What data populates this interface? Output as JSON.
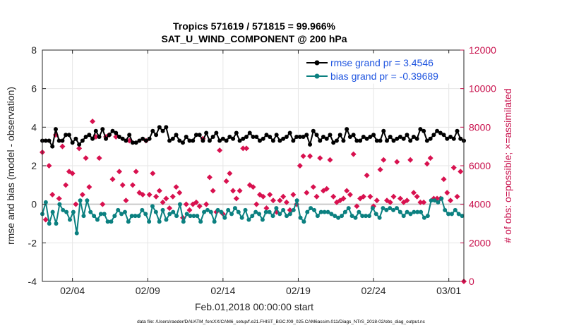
{
  "chart_data": {
    "type": "line",
    "title_line1": "Tropics 571619 / 571815 = 99.966%",
    "title_line2": "SAT_U_WIND_COMPONENT @ 200 hPa",
    "xlabel": "Feb.01,2018 00:00:00 start",
    "ylabel_left": "rmse and bias (model - observation)",
    "ylabel_right": "# of obs: o=possible; ×=assimilated",
    "footnote": "data file: /Users/raeder/DAI/ATM_forcXX/CAM6_setup/f.e21.FHIST_BGC.f09_025.CAM6assim.011/Diags_NTrS_2018-02/obs_diag_output.nc",
    "xlim": [
      1,
      29
    ],
    "ylim_left": [
      -4,
      8
    ],
    "ylim_right": [
      0,
      12000
    ],
    "x_ticks": [
      3,
      8,
      13,
      18,
      23,
      28
    ],
    "x_tick_labels": [
      "02/04",
      "02/09",
      "02/14",
      "02/19",
      "02/24",
      "03/01"
    ],
    "y_left_ticks": [
      -4,
      -2,
      0,
      2,
      4,
      6,
      8
    ],
    "y_left_tick_labels": [
      "-4",
      "-2",
      "0",
      "2",
      "4",
      "6",
      "8"
    ],
    "y_right_ticks": [
      0,
      2000,
      4000,
      6000,
      8000,
      10000,
      12000
    ],
    "y_right_tick_labels": [
      "0",
      "2000",
      "4000",
      "6000",
      "8000",
      "10000",
      "12000"
    ],
    "colors": {
      "rmse": "#000000",
      "bias": "#0b8080",
      "obs": "#d8114f",
      "right_axis": "#c8104c",
      "legend_text": "#1f55e0",
      "zero_line": "#c9c9c9"
    },
    "series": [
      {
        "name": "rmse grand pr = 3.4546",
        "axis": "left",
        "values": [
          3.3,
          3.1,
          3.3,
          3.2,
          3.3,
          3.1,
          3.0,
          3.2,
          3.9,
          3.4,
          3.3,
          3.0,
          3.3,
          3.2,
          3.6,
          3.6,
          3.6,
          3.3,
          3.2,
          3.5,
          3.4,
          3.2,
          3.1,
          3.2,
          3.3,
          3.3,
          3.5,
          3.9,
          3.6,
          3.8,
          3.4,
          3.6,
          3.8,
          3.5,
          3.5,
          3.6,
          3.9,
          3.5,
          3.4,
          3.5,
          3.6,
          4.0,
          3.8,
          3.7,
          3.7,
          4.0,
          3.5,
          3.3,
          3.4,
          3.3,
          3.3,
          3.5,
          3.6,
          3.6,
          3.2,
          3.3,
          3.2,
          3.1,
          3.3,
          3.5,
          3.4,
          3.2,
          3.3,
          3.4,
          3.4,
          3.5,
          3.8,
          3.6,
          3.6,
          3.9,
          4.0,
          3.4,
          3.8,
          3.6,
          4.0,
          3.9,
          3.3,
          3.6,
          3.4,
          3.5,
          3.6,
          3.5,
          3.3,
          3.3,
          3.2,
          3.5,
          3.5,
          3.6,
          3.3,
          3.2,
          3.3,
          3.5,
          3.6,
          3.5,
          3.6,
          3.4,
          3.3,
          3.4,
          3.7,
          3.4,
          3.3,
          3.5,
          3.5,
          3.6,
          3.7,
          3.4,
          3.3,
          3.2,
          3.4,
          3.2,
          3.3,
          3.6,
          3.5,
          3.6,
          3.4,
          3.5,
          3.7,
          3.5,
          3.3,
          3.2,
          3.4,
          3.4,
          3.5,
          3.5,
          3.7,
          3.6,
          3.5,
          3.4,
          3.5,
          3.3,
          3.3,
          3.6,
          3.4,
          3.5,
          3.6,
          3.4,
          3.5,
          3.6,
          3.3,
          3.5,
          3.6,
          3.5,
          3.3,
          3.5,
          3.4,
          3.6,
          3.5,
          3.6,
          3.7,
          3.4,
          3.3,
          3.6,
          3.5,
          3.6,
          3.5,
          3.7,
          3.5,
          3.7,
          3.6,
          3.5,
          3.1,
          3.5,
          3.8,
          3.5,
          3.6,
          3.6,
          3.3,
          3.4,
          3.5,
          3.4,
          3.4,
          3.8,
          3.6,
          3.5,
          3.2,
          3.4,
          3.3,
          3.5,
          3.6,
          3.5,
          3.3,
          3.7,
          3.9,
          3.8,
          3.5,
          3.3,
          3.6,
          3.3,
          3.3,
          3.5,
          3.3,
          3.6,
          3.5,
          3.5,
          3.4,
          3.5,
          3.5,
          3.6,
          3.6,
          3.4,
          3.3,
          3.4,
          3.3,
          3.5,
          3.8,
          3.6,
          3.3,
          3.6,
          3.5,
          3.6,
          3.3,
          3.3,
          3.4,
          3.4,
          3.5,
          3.9,
          3.4,
          3.5,
          3.6,
          3.3,
          3.3,
          3.6,
          3.5,
          3.6,
          3.4,
          3.5,
          3.9,
          4.0,
          3.8,
          3.5,
          3.3,
          3.7,
          3.4,
          3.5,
          3.6,
          3.5,
          3.8,
          3.4,
          3.7,
          3.5,
          3.6,
          3.5,
          3.4,
          3.6,
          3.5,
          3.6,
          3.4,
          3.5,
          3.8,
          3.6,
          3.4,
          3.4,
          3.3
        ]
      },
      {
        "name": "bias grand pr = -0.39689",
        "axis": "left",
        "values": [
          -0.5,
          -0.5,
          0.1,
          -1.0,
          -1.0,
          -0.6,
          -0.4,
          -0.4,
          -1.0,
          -0.2,
          0.0,
          -0.5,
          -0.3,
          -0.1,
          -0.4,
          -0.8,
          -0.8,
          -0.6,
          -0.4,
          -1.1,
          -1.5,
          -0.6,
          0.2,
          0.0,
          -0.6,
          0.6,
          0.2,
          -0.3,
          -0.4,
          -0.8,
          -0.6,
          -0.9,
          -0.8,
          -0.5,
          -0.5,
          -0.9,
          -0.5,
          -0.6,
          -0.9,
          -0.9,
          -0.9,
          -0.8,
          -0.6,
          -0.1,
          -0.3,
          -0.5,
          -0.5,
          -0.4,
          -0.4,
          -0.7,
          -0.9,
          -0.6,
          -0.6,
          -0.5,
          -0.6,
          -0.9,
          -0.6,
          -0.4,
          -0.3,
          -0.6,
          -0.5,
          -0.8,
          -0.9,
          -0.6,
          -0.1,
          -0.3,
          -0.4,
          -0.6,
          -0.9,
          -0.4,
          -0.3,
          -0.5,
          -0.8,
          -0.4,
          -0.5,
          -0.2,
          -0.4,
          -0.7,
          -0.6,
          -0.1,
          0.0,
          -0.1,
          -0.9,
          -0.4,
          -0.5,
          -0.8,
          -0.6,
          -0.2,
          -0.6,
          -0.3,
          -0.6,
          -0.8,
          -0.9,
          -1.0,
          -0.4,
          -0.2,
          -0.3,
          -0.5,
          -0.4,
          -0.6,
          -0.9,
          -0.6,
          -0.3,
          -0.6,
          -0.4,
          -0.8,
          -0.7,
          -0.6,
          -0.3,
          -0.6,
          -0.5,
          -0.4,
          -0.2,
          -0.6,
          -0.4,
          -0.5,
          -0.7,
          -0.6,
          -0.3,
          -0.5,
          -0.8,
          -0.6,
          -0.6,
          -0.2,
          -0.4,
          -0.7,
          -0.5,
          -0.1,
          -0.8,
          -0.6,
          -0.4,
          -0.6,
          -0.4,
          -0.3,
          -0.6,
          -0.5,
          -0.2,
          -0.4,
          -0.5,
          -0.7,
          -0.3,
          -0.3,
          -0.6,
          -0.8,
          -0.5,
          -0.1,
          -0.3,
          0.2,
          0.2,
          -0.6,
          -0.7,
          -0.7,
          -0.9,
          -0.5,
          -0.4,
          -0.6,
          -0.2,
          -0.6,
          -0.3,
          -0.4,
          -0.6,
          -0.7,
          -0.4,
          -0.2,
          -0.4,
          -0.5,
          -0.4,
          -0.6,
          -0.5,
          -0.8,
          -0.6,
          -0.3,
          -0.7,
          -0.3,
          -0.6,
          -0.4,
          -0.4,
          -0.3,
          -0.2,
          -0.5,
          -0.6,
          -0.2,
          -0.7,
          -0.6,
          -0.4,
          -0.3,
          -0.6,
          -0.7,
          -0.6,
          -0.4,
          -0.6,
          -0.5,
          -0.2,
          -0.3,
          -0.5,
          -0.6,
          -0.7,
          -0.3,
          -0.2,
          -0.4,
          -0.3,
          -0.4,
          -0.2,
          -0.5,
          -0.3,
          -0.4,
          -0.2,
          -0.5,
          -0.4,
          -0.7,
          -0.6,
          -0.3,
          -0.4,
          -0.5,
          -0.5,
          -0.6,
          -0.4,
          -0.3,
          -0.4,
          -0.6,
          -0.4,
          -0.5,
          -0.7,
          -0.7,
          -0.6,
          -0.4,
          0.2,
          0.2,
          0.2,
          0.3,
          0.1,
          -0.1,
          0.3,
          -0.2,
          -0.3,
          -0.6,
          -0.5,
          -0.4,
          -0.5,
          -0.4,
          -0.3,
          -0.5,
          -0.5,
          -0.6,
          -0.6,
          -0.7
        ]
      },
      {
        "name": "# of obs",
        "axis": "right",
        "values": [
          6700,
          5800,
          3200,
          3000,
          6000,
          5400,
          4500,
          3300,
          7600,
          4400,
          4300,
          4300,
          7000,
          5100,
          5000,
          6900,
          5700,
          6700,
          5600,
          6300,
          4000,
          6800,
          6900,
          4400,
          4500,
          5600,
          6400,
          4600,
          4900,
          4300,
          8300,
          4500,
          7500,
          6500,
          6400,
          4000,
          4000,
          8500,
          7500,
          5700,
          7600,
          7900,
          5300,
          7600,
          7500,
          4300,
          5700,
          6100,
          5000,
          5400,
          4200,
          6000,
          7300,
          4500,
          5000,
          6100,
          5700,
          3700,
          4600,
          3800,
          4500,
          6300,
          7300,
          3400,
          4500,
          6300,
          5600,
          5000,
          4400,
          3300,
          4700,
          5100,
          4100,
          7200,
          4300,
          4100,
          3800,
          4700,
          4400,
          3400,
          4900,
          4300,
          4600,
          4300,
          3300,
          4000,
          4000,
          2500,
          3700,
          5000,
          4000,
          3400,
          4100,
          3600,
          3900,
          4000,
          7400,
          4700,
          4000,
          4800,
          5400,
          7800,
          4700,
          4600,
          3600,
          3900,
          6800,
          4100,
          3500,
          6600,
          5200,
          3600,
          5600,
          5000,
          4700,
          6600,
          4300,
          4800,
          4700,
          4300,
          6900,
          6300,
          6900,
          5300,
          5000,
          4400,
          4900,
          4300,
          4000,
          3700,
          4500,
          3700,
          4400,
          4200,
          3800,
          4800,
          4500,
          4200,
          4200,
          4100,
          3600,
          4400,
          4200,
          4700,
          4400,
          4800,
          4100,
          4100,
          3700,
          4200,
          4500,
          4300,
          4000,
          4100,
          6000,
          5900,
          6500,
          5600,
          4600,
          4700,
          6500,
          6600,
          4900,
          4300,
          4400,
          4100,
          6400,
          4300,
          4700,
          4200,
          4800,
          4000,
          6300,
          6700,
          4400,
          5500,
          4100,
          4800,
          4200,
          4600,
          4300,
          6500,
          4700,
          4500,
          4500,
          4000,
          6600,
          4200,
          3900,
          6000,
          4300,
          4500,
          4400,
          3900,
          5500,
          6400,
          4400,
          4600,
          3900,
          4700,
          4200,
          4200,
          5800,
          5900,
          6300,
          4100,
          4200,
          4500,
          4100,
          4000,
          4400,
          4600,
          6200,
          4700,
          4300,
          4400,
          4100,
          3700,
          4200,
          4300,
          6300,
          6000,
          4600,
          4500,
          4400,
          4300,
          4100,
          3900,
          4100,
          4000,
          6100,
          6200,
          6400,
          4400,
          4300,
          4500,
          4300,
          4100,
          4300,
          5600,
          5300,
          4400,
          4600,
          4400,
          4200,
          6100,
          5900,
          4300,
          4400,
          4200,
          5700,
          5800,
          0
        ]
      }
    ]
  }
}
